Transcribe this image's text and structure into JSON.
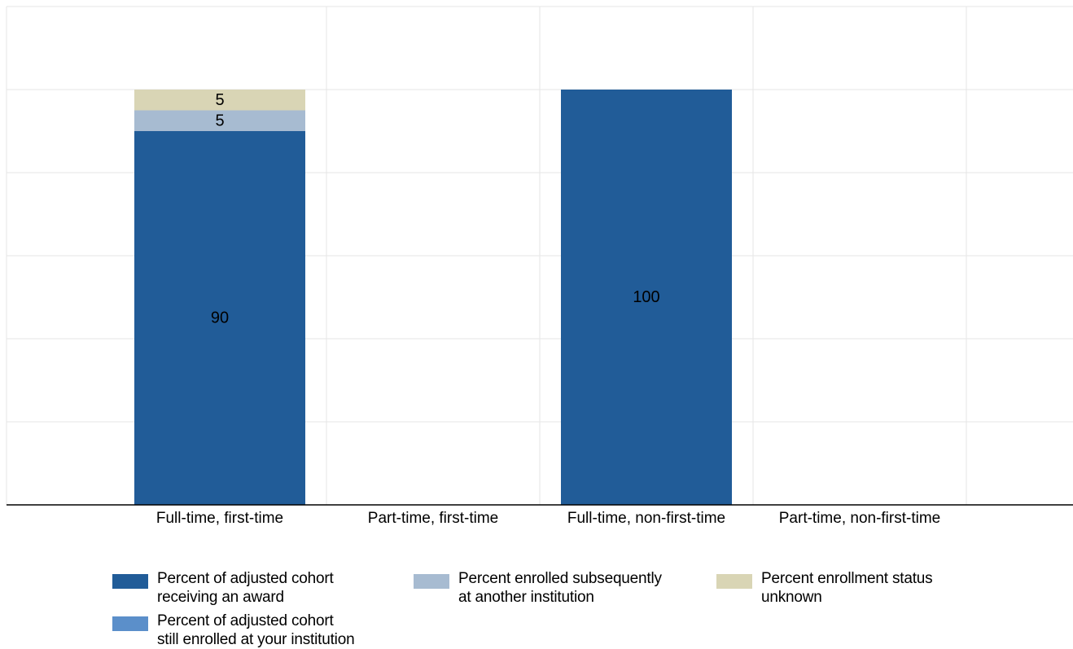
{
  "chart_data": {
    "type": "bar",
    "stacked": true,
    "orientation": "vertical",
    "categories": [
      "Full-time, first-time",
      "Part-time, first-time",
      "Full-time, non-first-time",
      "Part-time, non-first-time"
    ],
    "series": [
      {
        "name": "Percent of adjusted cohort\nreceiving an award",
        "color": "#215c98",
        "values": [
          90,
          null,
          100,
          null
        ]
      },
      {
        "name": "Percent of adjusted cohort\nstill enrolled at your institution",
        "color": "#5b8fca",
        "values": [
          0,
          null,
          0,
          null
        ]
      },
      {
        "name": "Percent enrolled subsequently\nat another institution",
        "color": "#a7bbd1",
        "values": [
          5,
          null,
          0,
          null
        ]
      },
      {
        "name": "Percent enrollment status\nunknown",
        "color": "#d9d5b5",
        "values": [
          5,
          null,
          0,
          null
        ]
      }
    ],
    "data_labels": [
      {
        "category": "Full-time, first-time",
        "series": 0,
        "text": "90"
      },
      {
        "category": "Full-time, first-time",
        "series": 2,
        "text": "5"
      },
      {
        "category": "Full-time, first-time",
        "series": 3,
        "text": "5"
      },
      {
        "category": "Full-time, non-first-time",
        "series": 0,
        "text": "100"
      }
    ],
    "ylim": [
      0,
      120
    ],
    "gridlines": true,
    "legend_position": "bottom",
    "title": "",
    "xlabel": "",
    "ylabel": ""
  }
}
